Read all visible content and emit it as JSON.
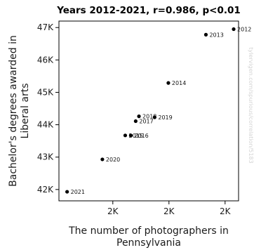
{
  "chart_data": {
    "type": "scatter",
    "title": "Years 2012-2021, r=0.986, p<0.01",
    "xlabel": [
      "The number of photographers in",
      "Pennsylvania"
    ],
    "ylabel": [
      "Bachelor's degrees awarded in",
      "Liberal arts"
    ],
    "x_tick_labels": [
      "2K",
      "2K",
      "2K"
    ],
    "y_ticks": [
      {
        "value": 42000,
        "label": "42K"
      },
      {
        "value": 43000,
        "label": "43K"
      },
      {
        "value": 44000,
        "label": "44K"
      },
      {
        "value": 45000,
        "label": "45K"
      },
      {
        "value": 46000,
        "label": "46K"
      },
      {
        "value": 47000,
        "label": "47K"
      }
    ],
    "xlim": [
      1605,
      2155
    ],
    "ylim": [
      41650,
      47200
    ],
    "grid": false,
    "point_color": "#000000",
    "points": [
      {
        "label": "2012",
        "x": 2140,
        "y": 46950
      },
      {
        "label": "2013",
        "x": 2055,
        "y": 46780
      },
      {
        "label": "2014",
        "x": 1940,
        "y": 45290
      },
      {
        "label": "2015",
        "x": 1808,
        "y": 43670
      },
      {
        "label": "2016",
        "x": 1825,
        "y": 43670
      },
      {
        "label": "2017",
        "x": 1840,
        "y": 44110
      },
      {
        "label": "2018",
        "x": 1850,
        "y": 44260
      },
      {
        "label": "2019",
        "x": 1898,
        "y": 44230
      },
      {
        "label": "2020",
        "x": 1738,
        "y": 42930
      },
      {
        "label": "2021",
        "x": 1630,
        "y": 41930
      }
    ],
    "watermark": "tylervigen.com/spurious/correlation/5183"
  }
}
